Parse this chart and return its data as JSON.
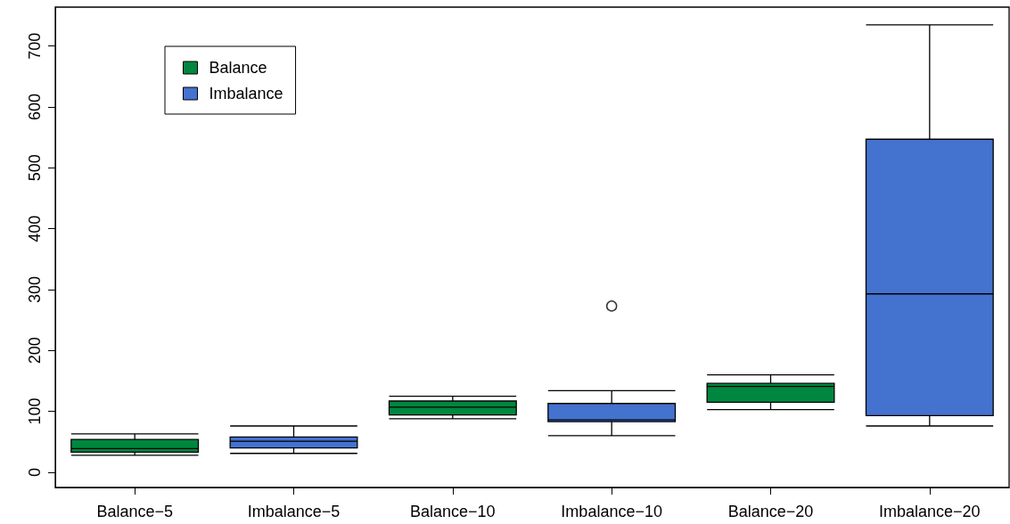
{
  "chart_data": {
    "type": "box",
    "categories": [
      "Balance−5",
      "Imbalance−5",
      "Balance−10",
      "Imbalance−10",
      "Balance−20",
      "Imbalance−20"
    ],
    "series": [
      {
        "name": "Balance",
        "color": "#00873f",
        "boxes": [
          {
            "low": 28,
            "q1": 33,
            "median": 39,
            "q3": 54,
            "high": 63
          },
          null,
          {
            "low": 88,
            "q1": 94,
            "median": 107,
            "q3": 117,
            "high": 125
          },
          null,
          {
            "low": 103,
            "q1": 115,
            "median": 141,
            "q3": 146,
            "high": 160
          },
          null
        ]
      },
      {
        "name": "Imbalance",
        "color": "#4472cf",
        "boxes": [
          null,
          {
            "low": 31,
            "q1": 40,
            "median": 51,
            "q3": 58,
            "high": 76
          },
          null,
          {
            "low": 60,
            "q1": 83,
            "median": 86,
            "q3": 113,
            "high": 134,
            "outliers": [
              273
            ]
          },
          null,
          {
            "low": 76,
            "q1": 93,
            "median": 293,
            "q3": 547,
            "high": 735
          }
        ]
      }
    ],
    "ylim": [
      -25,
      764
    ],
    "yticks": [
      0,
      100,
      200,
      300,
      400,
      500,
      600,
      700
    ],
    "legend": "top left",
    "grid": false
  }
}
